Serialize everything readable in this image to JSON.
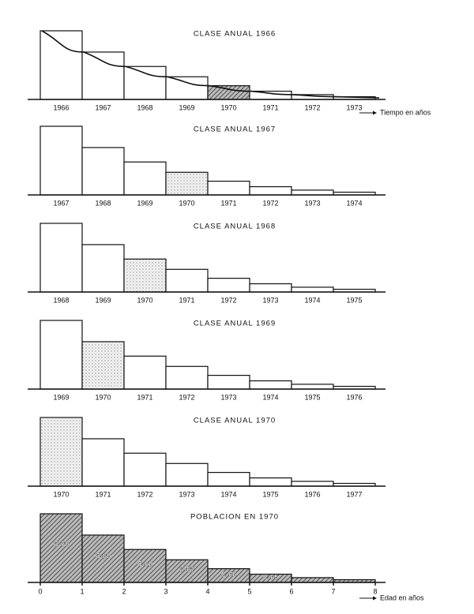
{
  "chart_data": [
    {
      "type": "bar",
      "title": "CLASE ANUAL 1966",
      "xlabel": "Tiempo en años",
      "categories": [
        "1966",
        "1967",
        "1968",
        "1969",
        "1970",
        "1971",
        "1972",
        "1973"
      ],
      "values": [
        100,
        69,
        48,
        33,
        20,
        12,
        7,
        4
      ],
      "highlight": 4,
      "ylim": [
        0,
        100
      ],
      "curve": true
    },
    {
      "type": "bar",
      "title": "CLASE ANUAL 1967",
      "categories": [
        "1967",
        "1968",
        "1969",
        "1970",
        "1971",
        "1972",
        "1973",
        "1974"
      ],
      "values": [
        100,
        69,
        48,
        33,
        20,
        12,
        7,
        4
      ],
      "highlight": 3,
      "ylim": [
        0,
        100
      ]
    },
    {
      "type": "bar",
      "title": "CLASE ANUAL 1968",
      "categories": [
        "1968",
        "1969",
        "1970",
        "1971",
        "1972",
        "1973",
        "1974",
        "1975"
      ],
      "values": [
        100,
        69,
        48,
        33,
        20,
        12,
        7,
        4
      ],
      "highlight": 2,
      "ylim": [
        0,
        100
      ]
    },
    {
      "type": "bar",
      "title": "CLASE ANUAL 1969",
      "categories": [
        "1969",
        "1970",
        "1971",
        "1972",
        "1973",
        "1974",
        "1975",
        "1976"
      ],
      "values": [
        100,
        69,
        48,
        33,
        20,
        12,
        7,
        4
      ],
      "highlight": 1,
      "ylim": [
        0,
        100
      ]
    },
    {
      "type": "bar",
      "title": "CLASE ANUAL 1970",
      "categories": [
        "1970",
        "1971",
        "1972",
        "1973",
        "1974",
        "1975",
        "1976",
        "1977"
      ],
      "values": [
        100,
        69,
        48,
        33,
        20,
        12,
        7,
        4
      ],
      "highlight": 0,
      "ylim": [
        0,
        100
      ]
    },
    {
      "type": "histogram",
      "title": "POBLACION EN 1970",
      "xlabel": "Edad en años",
      "bins": [
        0,
        1,
        2,
        3,
        4,
        5,
        6,
        7,
        8
      ],
      "values": [
        100,
        69,
        48,
        33,
        20,
        12,
        7,
        4
      ],
      "bar_labels": [
        "C-70",
        "C-69",
        "C-68",
        "C-67",
        "C-66",
        "C-65",
        null,
        null
      ],
      "ylim": [
        0,
        100
      ],
      "xlim": [
        0,
        8
      ],
      "xticks": [
        0,
        1,
        2,
        3,
        4,
        5,
        6,
        7,
        8
      ]
    }
  ]
}
